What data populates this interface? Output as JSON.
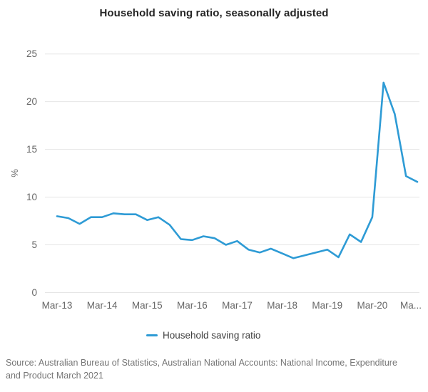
{
  "title": "Household saving ratio, seasonally adjusted",
  "legend": {
    "label": "Household saving ratio"
  },
  "footer": {
    "source": "Source: Australian Bureau of Statistics, Australian National Accounts: National Income, Expenditure and Product March 2021"
  },
  "colors": {
    "line": "#2e9bd5",
    "grid": "#e5e5e5",
    "tick_text": "#666666",
    "title_text": "#252525",
    "legend_text": "#404040",
    "footer_text": "#757575"
  },
  "y_axis": {
    "label": "%",
    "ticks": [
      0,
      5,
      10,
      15,
      20,
      25
    ],
    "min": 0,
    "max": 25
  },
  "x_axis": {
    "visible_ticks": [
      "Mar-13",
      "Mar-14",
      "Mar-15",
      "Mar-16",
      "Mar-17",
      "Mar-18",
      "Mar-19",
      "Mar-20",
      "Ma..."
    ]
  },
  "chart_data": {
    "type": "line",
    "title": "Household saving ratio, seasonally adjusted",
    "xlabel": "",
    "ylabel": "%",
    "ylim": [
      0,
      25
    ],
    "grid": "horizontal-only",
    "legend_position": "bottom-center",
    "x": [
      "Mar-13",
      "Jun-13",
      "Sep-13",
      "Dec-13",
      "Mar-14",
      "Jun-14",
      "Sep-14",
      "Dec-14",
      "Mar-15",
      "Jun-15",
      "Sep-15",
      "Dec-15",
      "Mar-16",
      "Jun-16",
      "Sep-16",
      "Dec-16",
      "Mar-17",
      "Jun-17",
      "Sep-17",
      "Dec-17",
      "Mar-18",
      "Jun-18",
      "Sep-18",
      "Dec-18",
      "Mar-19",
      "Jun-19",
      "Sep-19",
      "Dec-19",
      "Mar-20",
      "Jun-20",
      "Sep-20",
      "Dec-20",
      "Mar-21"
    ],
    "series": [
      {
        "name": "Household saving ratio",
        "values": [
          8.0,
          7.8,
          7.2,
          7.9,
          7.9,
          8.3,
          8.2,
          8.2,
          7.6,
          7.9,
          7.1,
          5.6,
          5.5,
          5.9,
          5.7,
          5.0,
          5.4,
          4.5,
          4.2,
          4.6,
          4.1,
          3.6,
          3.9,
          4.2,
          4.5,
          3.7,
          6.1,
          5.3,
          7.9,
          22.0,
          18.7,
          12.2,
          11.6
        ]
      }
    ]
  }
}
